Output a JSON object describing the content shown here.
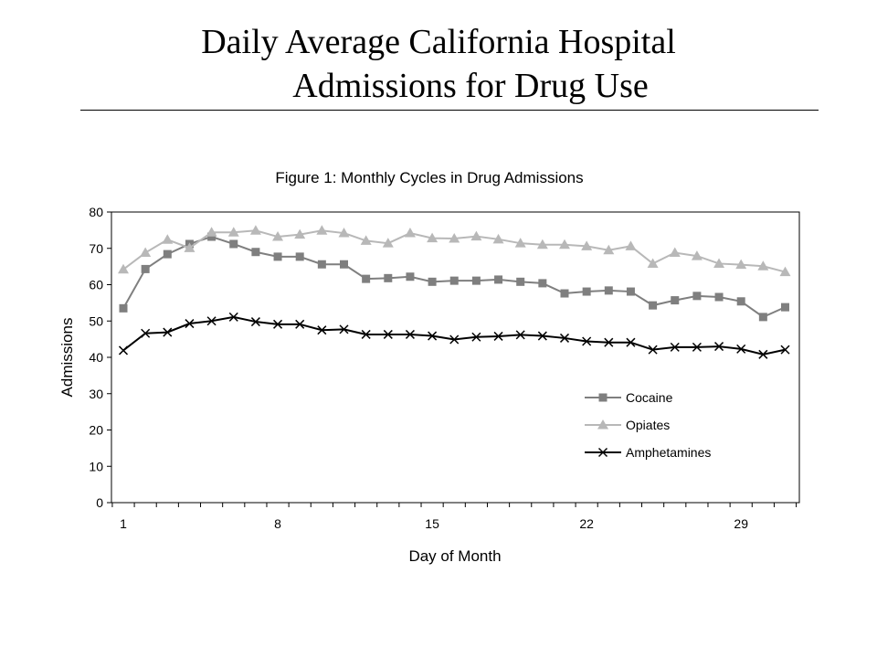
{
  "slide": {
    "title_line1": "Daily Average California Hospital",
    "title_line2": "Admissions for Drug Use"
  },
  "chart_data": {
    "type": "line",
    "title": "Figure 1:  Monthly Cycles in Drug Admissions",
    "xlabel": "Day of Month",
    "ylabel": "Admissions",
    "x": [
      1,
      2,
      3,
      4,
      5,
      6,
      7,
      8,
      9,
      10,
      11,
      12,
      13,
      14,
      15,
      16,
      17,
      18,
      19,
      20,
      21,
      22,
      23,
      24,
      25,
      26,
      27,
      28,
      29,
      30,
      31
    ],
    "xticks": [
      1,
      8,
      15,
      22,
      29
    ],
    "yticks": [
      0,
      10,
      20,
      30,
      40,
      50,
      60,
      70,
      80
    ],
    "ylim": [
      0,
      80
    ],
    "grid": false,
    "legend_position": "bottom-right",
    "series": [
      {
        "name": "Cocaine",
        "marker": "square",
        "color": "#7f7f7f",
        "values": [
          53.5,
          64.3,
          68.4,
          71.2,
          73.2,
          71.2,
          69.0,
          67.7,
          67.7,
          65.6,
          65.6,
          61.6,
          61.8,
          62.2,
          60.8,
          61.1,
          61.1,
          61.4,
          60.8,
          60.4,
          57.6,
          58.1,
          58.4,
          58.1,
          54.3,
          55.7,
          56.9,
          56.6,
          55.4,
          51.1,
          53.8
        ]
      },
      {
        "name": "Opiates",
        "marker": "triangle",
        "color": "#b8b8b8",
        "values": [
          64.2,
          68.8,
          72.4,
          70.1,
          74.4,
          74.4,
          74.9,
          73.2,
          73.8,
          74.9,
          74.2,
          72.1,
          71.4,
          74.2,
          72.8,
          72.7,
          73.3,
          72.5,
          71.4,
          71.0,
          71.0,
          70.6,
          69.5,
          70.6,
          65.8,
          68.8,
          67.9,
          65.8,
          65.5,
          65.1,
          63.5
        ]
      },
      {
        "name": "Amphetamines",
        "marker": "x",
        "color": "#000000",
        "values": [
          41.9,
          46.6,
          46.9,
          49.3,
          50.0,
          51.1,
          49.8,
          49.1,
          49.1,
          47.5,
          47.7,
          46.3,
          46.3,
          46.3,
          45.9,
          44.9,
          45.6,
          45.8,
          46.2,
          45.9,
          45.3,
          44.4,
          44.1,
          44.1,
          42.1,
          42.8,
          42.8,
          43.0,
          42.3,
          40.8,
          42.1
        ]
      }
    ]
  }
}
